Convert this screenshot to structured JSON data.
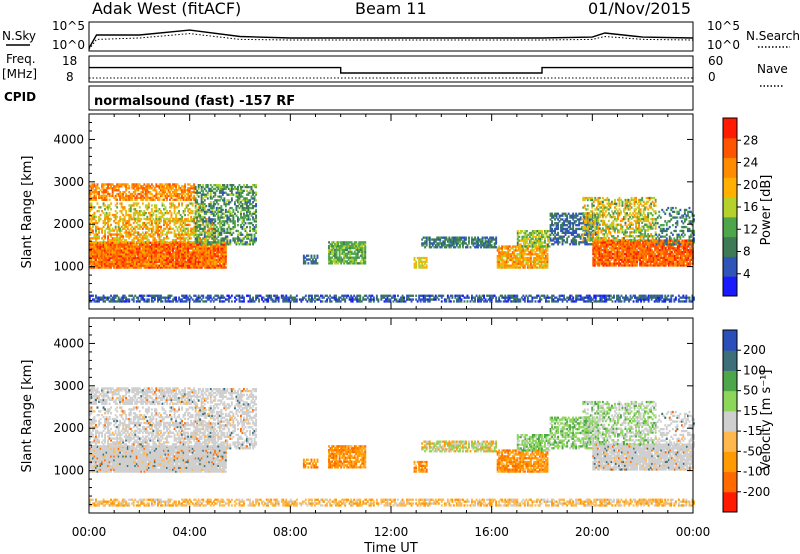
{
  "header": {
    "title": "Adak West (fitACF)",
    "beam": "Beam 11",
    "date": "01/Nov/2015"
  },
  "labels": {
    "nsky": "N.Sky",
    "nsearch": "N.Search",
    "freq": "Freq.",
    "freq_unit": "[MHz]",
    "nave": "Nave",
    "cpid": "CPID",
    "cpid_text": "normalsound (fast) -157 RF",
    "ylabel": "Slant Range [km]",
    "xlabel": "Time UT",
    "power_label": "Power [dB]",
    "velocity_label": "Velocity [m s⁻¹]"
  },
  "colors": {
    "power": [
      "#1a1aff",
      "#2f55b8",
      "#3d7a55",
      "#4ea64a",
      "#b5d12c",
      "#ffb000",
      "#ff8c00",
      "#ff5500",
      "#ff1a00"
    ],
    "velocity": [
      "#ff1a00",
      "#ff6a00",
      "#ff9a00",
      "#ffb84d",
      "#cfcfcf",
      "#8cd65a",
      "#4ea64a",
      "#3d6f7a",
      "#2b4fb8"
    ]
  },
  "chart_data": [
    {
      "type": "line",
      "name": "noise-panel",
      "y_ticks_left": [
        "10^5",
        "10^0"
      ],
      "y_ticks_right": [
        "10^5",
        "10^0"
      ],
      "x": [
        0,
        0.3,
        2,
        4,
        6,
        8,
        10,
        12,
        14,
        16,
        18,
        20,
        20.5,
        22,
        24
      ],
      "series": [
        {
          "name": "N.Sky",
          "values": [
            0.1,
            0.55,
            0.55,
            0.72,
            0.5,
            0.45,
            0.45,
            0.45,
            0.45,
            0.45,
            0.45,
            0.48,
            0.62,
            0.48,
            0.45
          ]
        },
        {
          "name": "N.Search",
          "values": [
            0.05,
            0.4,
            0.45,
            0.6,
            0.4,
            0.38,
            0.38,
            0.38,
            0.38,
            0.38,
            0.38,
            0.4,
            0.5,
            0.4,
            0.38
          ]
        }
      ]
    },
    {
      "type": "line",
      "name": "freq-nave-panel",
      "y_ticks_left": [
        "18",
        "8"
      ],
      "y_ticks_right": [
        "60",
        "0"
      ],
      "series": [
        {
          "name": "Freq.",
          "x": [
            0,
            10,
            10,
            18,
            18,
            24
          ],
          "values": [
            13.2,
            13.2,
            10.5,
            10.5,
            13.2,
            13.2
          ]
        },
        {
          "name": "Nave",
          "x": [
            0,
            24
          ],
          "values": [
            8,
            8
          ]
        }
      ]
    },
    {
      "type": "heatmap",
      "name": "power-panel",
      "quantity": "power",
      "xlim": [
        0,
        24
      ],
      "ylim": [
        0,
        4600
      ],
      "x_ticks": [
        "00:00",
        "04:00",
        "08:00",
        "12:00",
        "16:00",
        "20:00",
        "00:00"
      ],
      "y_ticks": [
        1000,
        2000,
        3000,
        4000
      ],
      "colorbar_ticks": [
        "28",
        "24",
        "20",
        "16",
        "12",
        "8",
        "4"
      ],
      "colorbar_range": [
        0,
        32
      ]
    },
    {
      "type": "heatmap",
      "name": "velocity-panel",
      "quantity": "velocity",
      "xlim": [
        0,
        24
      ],
      "ylim": [
        0,
        4600
      ],
      "x_ticks": [
        "00:00",
        "04:00",
        "08:00",
        "12:00",
        "16:00",
        "20:00",
        "00:00"
      ],
      "y_ticks": [
        1000,
        2000,
        3000,
        4000
      ],
      "colorbar_ticks": [
        "200",
        "100",
        "50",
        "15",
        "-15",
        "-50",
        "-100",
        "-200"
      ],
      "colorbar_range": [
        -250,
        250
      ]
    }
  ],
  "regions": [
    {
      "t0": 0,
      "t1": 5.4,
      "r0": 950,
      "r1": 1550,
      "density": 0.97,
      "power": [
        20,
        30
      ],
      "vel": "grey"
    },
    {
      "t0": 0,
      "t1": 5.0,
      "r0": 1550,
      "r1": 2100,
      "density": 0.55,
      "power": [
        14,
        26
      ],
      "vel": "grey"
    },
    {
      "t0": 0,
      "t1": 4.6,
      "r0": 2100,
      "r1": 2500,
      "density": 0.35,
      "power": [
        12,
        24
      ],
      "vel": "grey"
    },
    {
      "t0": 0,
      "t1": 4.2,
      "r0": 2550,
      "r1": 2950,
      "density": 0.7,
      "power": [
        18,
        28
      ],
      "vel": "grey"
    },
    {
      "t0": 4.2,
      "t1": 6.6,
      "r0": 1500,
      "r1": 2900,
      "density": 0.5,
      "power": [
        6,
        16
      ],
      "vel": "grey"
    },
    {
      "t0": 9.5,
      "t1": 11.0,
      "r0": 1050,
      "r1": 1550,
      "density": 0.8,
      "power": [
        10,
        16
      ],
      "vel": "orange"
    },
    {
      "t0": 8.5,
      "t1": 9.1,
      "r0": 1050,
      "r1": 1250,
      "density": 0.6,
      "power": [
        4,
        10
      ],
      "vel": "orange"
    },
    {
      "t0": 12.9,
      "t1": 13.4,
      "r0": 950,
      "r1": 1200,
      "density": 0.6,
      "power": [
        14,
        20
      ],
      "vel": "orange"
    },
    {
      "t0": 13.2,
      "t1": 16.2,
      "r0": 1430,
      "r1": 1680,
      "density": 0.75,
      "power": [
        4,
        12
      ],
      "vel": "mixedgo"
    },
    {
      "t0": 16.2,
      "t1": 18.2,
      "r0": 950,
      "r1": 1450,
      "density": 0.8,
      "power": [
        16,
        26
      ],
      "vel": "orange"
    },
    {
      "t0": 17.0,
      "t1": 18.3,
      "r0": 1450,
      "r1": 1850,
      "density": 0.7,
      "power": [
        10,
        20
      ],
      "vel": "green"
    },
    {
      "t0": 18.3,
      "t1": 20.2,
      "r0": 1500,
      "r1": 2250,
      "density": 0.55,
      "power": [
        4,
        10
      ],
      "vel": "green"
    },
    {
      "t0": 20.0,
      "t1": 24,
      "r0": 1000,
      "r1": 1600,
      "density": 0.92,
      "power": [
        22,
        30
      ],
      "vel": "grey"
    },
    {
      "t0": 19.6,
      "t1": 22.5,
      "r0": 1600,
      "r1": 2600,
      "density": 0.5,
      "power": [
        10,
        24
      ],
      "vel": "greengrey"
    },
    {
      "t0": 22.5,
      "t1": 24,
      "r0": 1500,
      "r1": 2400,
      "density": 0.3,
      "power": [
        4,
        14
      ],
      "vel": "grey"
    },
    {
      "t0": 0,
      "t1": 24,
      "r0": 150,
      "r1": 330,
      "density": 0.6,
      "power": [
        2,
        10
      ],
      "vel": "ground"
    }
  ]
}
